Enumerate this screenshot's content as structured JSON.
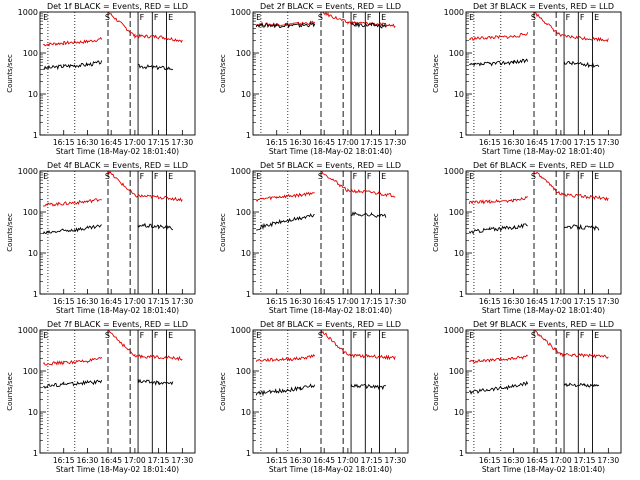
{
  "figure": {
    "xlabel": "Start Time (18-May-02 18:01:40)",
    "ylabel": "Counts/sec"
  },
  "chart_data": {
    "type": "line",
    "xlabel": "Start Time (18-May-02 18:01:40)",
    "ylabel": "Counts/sec",
    "yscale": "log",
    "ylim": [
      1,
      1000
    ],
    "x_ticks": [
      "16:15",
      "16:30",
      "16:45",
      "17:00",
      "17:15",
      "17:30"
    ],
    "y_ticks": [
      "1",
      "10",
      "100",
      "1000"
    ],
    "grid": false,
    "colors": {
      "events": "#000000",
      "lld": "#e00000",
      "axes": "#000000"
    },
    "event_markers": {
      "letters": [
        "E",
        "S",
        "F",
        "F",
        "E"
      ],
      "marker_times": [
        "16:05",
        "16:22",
        "16:43",
        "16:57",
        "17:02",
        "17:11",
        "17:20"
      ]
    },
    "panels": [
      {
        "title": "Det 1f BLACK = Events, RED = LLD",
        "events": [
          {
            "t": "16:02",
            "v": 42
          },
          {
            "t": "16:15",
            "v": 48
          },
          {
            "t": "16:30",
            "v": 52
          },
          {
            "t": "16:39",
            "v": 60
          },
          {
            "t": "17:02",
            "v": 48
          },
          {
            "t": "17:15",
            "v": 44
          },
          {
            "t": "17:24",
            "v": 42
          }
        ],
        "lld": [
          {
            "t": "16:02",
            "v": 160
          },
          {
            "t": "16:15",
            "v": 175
          },
          {
            "t": "16:30",
            "v": 190
          },
          {
            "t": "16:39",
            "v": 220
          },
          {
            "t": "16:43",
            "v": 1000
          },
          {
            "t": "17:00",
            "v": 260
          },
          {
            "t": "17:15",
            "v": 250
          },
          {
            "t": "17:30",
            "v": 200
          }
        ]
      },
      {
        "title": "Det 2f BLACK = Events, RED = LLD",
        "events": [
          {
            "t": "16:02",
            "v": 480
          },
          {
            "t": "16:15",
            "v": 470
          },
          {
            "t": "16:30",
            "v": 470
          },
          {
            "t": "16:39",
            "v": 500
          },
          {
            "t": "17:02",
            "v": 490
          },
          {
            "t": "17:15",
            "v": 480
          },
          {
            "t": "17:24",
            "v": 450
          }
        ],
        "lld": [
          {
            "t": "16:02",
            "v": 500
          },
          {
            "t": "16:15",
            "v": 500
          },
          {
            "t": "16:30",
            "v": 520
          },
          {
            "t": "16:39",
            "v": 560
          },
          {
            "t": "16:43",
            "v": 1000
          },
          {
            "t": "17:00",
            "v": 550
          },
          {
            "t": "17:15",
            "v": 520
          },
          {
            "t": "17:30",
            "v": 460
          }
        ]
      },
      {
        "title": "Det 3f BLACK = Events, RED = LLD",
        "events": [
          {
            "t": "16:02",
            "v": 50
          },
          {
            "t": "16:15",
            "v": 55
          },
          {
            "t": "16:30",
            "v": 60
          },
          {
            "t": "16:39",
            "v": 65
          },
          {
            "t": "17:02",
            "v": 60
          },
          {
            "t": "17:15",
            "v": 52
          },
          {
            "t": "17:24",
            "v": 50
          }
        ],
        "lld": [
          {
            "t": "16:02",
            "v": 220
          },
          {
            "t": "16:15",
            "v": 240
          },
          {
            "t": "16:30",
            "v": 250
          },
          {
            "t": "16:39",
            "v": 300
          },
          {
            "t": "16:43",
            "v": 1000
          },
          {
            "t": "17:00",
            "v": 260
          },
          {
            "t": "17:15",
            "v": 230
          },
          {
            "t": "17:30",
            "v": 210
          }
        ]
      },
      {
        "title": "Det 4f BLACK = Events, RED = LLD",
        "events": [
          {
            "t": "16:02",
            "v": 30
          },
          {
            "t": "16:15",
            "v": 35
          },
          {
            "t": "16:30",
            "v": 40
          },
          {
            "t": "16:39",
            "v": 45
          },
          {
            "t": "17:02",
            "v": 48
          },
          {
            "t": "17:15",
            "v": 44
          },
          {
            "t": "17:24",
            "v": 40
          }
        ],
        "lld": [
          {
            "t": "16:02",
            "v": 150
          },
          {
            "t": "16:15",
            "v": 160
          },
          {
            "t": "16:30",
            "v": 180
          },
          {
            "t": "16:39",
            "v": 210
          },
          {
            "t": "16:43",
            "v": 1000
          },
          {
            "t": "17:00",
            "v": 250
          },
          {
            "t": "17:15",
            "v": 230
          },
          {
            "t": "17:30",
            "v": 200
          }
        ]
      },
      {
        "title": "Det 5f BLACK = Events, RED = LLD",
        "events": [
          {
            "t": "16:02",
            "v": 40
          },
          {
            "t": "16:15",
            "v": 55
          },
          {
            "t": "16:30",
            "v": 70
          },
          {
            "t": "16:39",
            "v": 85
          },
          {
            "t": "17:02",
            "v": 90
          },
          {
            "t": "17:15",
            "v": 85
          },
          {
            "t": "17:24",
            "v": 80
          }
        ],
        "lld": [
          {
            "t": "16:02",
            "v": 200
          },
          {
            "t": "16:15",
            "v": 230
          },
          {
            "t": "16:30",
            "v": 260
          },
          {
            "t": "16:39",
            "v": 300
          },
          {
            "t": "16:43",
            "v": 1000
          },
          {
            "t": "17:00",
            "v": 330
          },
          {
            "t": "17:15",
            "v": 300
          },
          {
            "t": "17:30",
            "v": 250
          }
        ]
      },
      {
        "title": "Det 6f BLACK = Events, RED = LLD",
        "events": [
          {
            "t": "16:02",
            "v": 32
          },
          {
            "t": "16:15",
            "v": 38
          },
          {
            "t": "16:30",
            "v": 42
          },
          {
            "t": "16:39",
            "v": 48
          },
          {
            "t": "17:02",
            "v": 45
          },
          {
            "t": "17:15",
            "v": 42
          },
          {
            "t": "17:24",
            "v": 40
          }
        ],
        "lld": [
          {
            "t": "16:02",
            "v": 170
          },
          {
            "t": "16:15",
            "v": 180
          },
          {
            "t": "16:30",
            "v": 190
          },
          {
            "t": "16:39",
            "v": 230
          },
          {
            "t": "16:43",
            "v": 1000
          },
          {
            "t": "17:00",
            "v": 270
          },
          {
            "t": "17:15",
            "v": 240
          },
          {
            "t": "17:30",
            "v": 210
          }
        ]
      },
      {
        "title": "Det 7f BLACK = Events, RED = LLD",
        "events": [
          {
            "t": "16:02",
            "v": 42
          },
          {
            "t": "16:15",
            "v": 48
          },
          {
            "t": "16:30",
            "v": 52
          },
          {
            "t": "16:39",
            "v": 55
          },
          {
            "t": "17:02",
            "v": 58
          },
          {
            "t": "17:15",
            "v": 52
          },
          {
            "t": "17:24",
            "v": 50
          }
        ],
        "lld": [
          {
            "t": "16:02",
            "v": 150
          },
          {
            "t": "16:15",
            "v": 160
          },
          {
            "t": "16:30",
            "v": 175
          },
          {
            "t": "16:39",
            "v": 200
          },
          {
            "t": "16:43",
            "v": 1000
          },
          {
            "t": "17:00",
            "v": 230
          },
          {
            "t": "17:15",
            "v": 220
          },
          {
            "t": "17:30",
            "v": 200
          }
        ]
      },
      {
        "title": "Det 8f BLACK = Events, RED = LLD",
        "events": [
          {
            "t": "16:02",
            "v": 28
          },
          {
            "t": "16:15",
            "v": 32
          },
          {
            "t": "16:30",
            "v": 38
          },
          {
            "t": "16:39",
            "v": 45
          },
          {
            "t": "17:02",
            "v": 45
          },
          {
            "t": "17:15",
            "v": 42
          },
          {
            "t": "17:24",
            "v": 40
          }
        ],
        "lld": [
          {
            "t": "16:02",
            "v": 180
          },
          {
            "t": "16:15",
            "v": 190
          },
          {
            "t": "16:30",
            "v": 200
          },
          {
            "t": "16:39",
            "v": 240
          },
          {
            "t": "16:43",
            "v": 1000
          },
          {
            "t": "17:00",
            "v": 240
          },
          {
            "t": "17:15",
            "v": 230
          },
          {
            "t": "17:30",
            "v": 210
          }
        ]
      },
      {
        "title": "Det 9f BLACK = Events, RED = LLD",
        "events": [
          {
            "t": "16:02",
            "v": 30
          },
          {
            "t": "16:15",
            "v": 36
          },
          {
            "t": "16:30",
            "v": 42
          },
          {
            "t": "16:39",
            "v": 50
          },
          {
            "t": "17:02",
            "v": 48
          },
          {
            "t": "17:15",
            "v": 44
          },
          {
            "t": "17:24",
            "v": 42
          }
        ],
        "lld": [
          {
            "t": "16:02",
            "v": 170
          },
          {
            "t": "16:15",
            "v": 180
          },
          {
            "t": "16:30",
            "v": 200
          },
          {
            "t": "16:39",
            "v": 230
          },
          {
            "t": "16:43",
            "v": 1000
          },
          {
            "t": "17:00",
            "v": 250
          },
          {
            "t": "17:15",
            "v": 240
          },
          {
            "t": "17:30",
            "v": 220
          }
        ]
      }
    ]
  }
}
